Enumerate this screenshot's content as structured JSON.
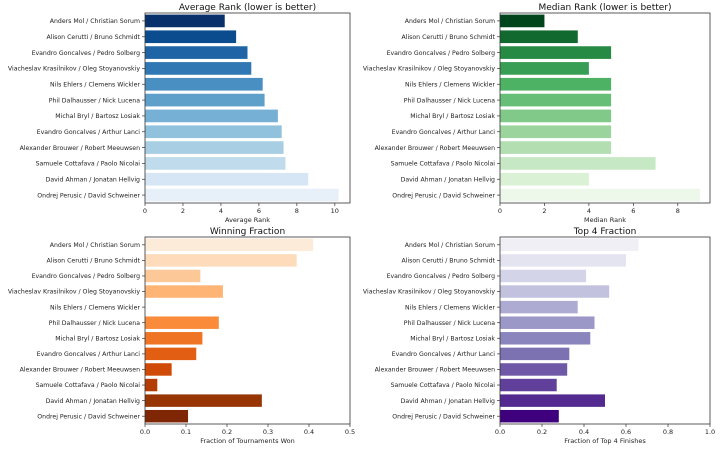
{
  "chart_data": [
    {
      "type": "bar",
      "orientation": "horizontal",
      "title": "Average Rank (lower is better)",
      "xlabel": "Average Rank",
      "ylabel": "",
      "xlim": [
        0,
        10.8
      ],
      "xticks": [
        "0",
        "2",
        "4",
        "6",
        "8",
        "10"
      ],
      "xtick_values": [
        0,
        2,
        4,
        6,
        8,
        10
      ],
      "categories": [
        "Anders Mol / Christian Sorum",
        "Alison Cerutti / Bruno Schmidt",
        "Evandro Goncalves / Pedro Solberg",
        "Viacheslav Krasilnikov / Oleg Stoyanovskiy",
        "Nils Ehlers / Clemens Wickler",
        "Phil Dalhausser / Nick Lucena",
        "Michal Bryl / Bartosz Losiak",
        "Evandro Goncalves / Arthur Lanci",
        "Alexander Brouwer / Robert Meeuwsen",
        "Samuele Cottafava / Paolo Nicolai",
        "David Ahman / Jonatan Hellvig",
        "Ondrej Perusic / David Schweiner"
      ],
      "values": [
        4.2,
        4.8,
        5.4,
        5.6,
        6.2,
        6.3,
        7.0,
        7.2,
        7.3,
        7.4,
        8.6,
        10.2
      ],
      "colors": [
        "#08306b",
        "#0b4c8f",
        "#1f65a5",
        "#2f78b4",
        "#4a8fc2",
        "#5fa0cb",
        "#76b0d4",
        "#90c1dd",
        "#a8cee4",
        "#c0dbec",
        "#d7e6f4",
        "#e7f0f9"
      ],
      "grid": false
    },
    {
      "type": "bar",
      "orientation": "horizontal",
      "title": "Median Rank (lower is better)",
      "xlabel": "Median Rank",
      "ylabel": "",
      "xlim": [
        0,
        9.45
      ],
      "xticks": [
        "0",
        "2",
        "4",
        "6",
        "8"
      ],
      "xtick_values": [
        0,
        2,
        4,
        6,
        8
      ],
      "categories": [
        "Anders Mol / Christian Sorum",
        "Alison Cerutti / Bruno Schmidt",
        "Evandro Goncalves / Pedro Solberg",
        "Viacheslav Krasilnikov / Oleg Stoyanovskiy",
        "Nils Ehlers / Clemens Wickler",
        "Phil Dalhausser / Nick Lucena",
        "Michal Bryl / Bartosz Losiak",
        "Evandro Goncalves / Arthur Lanci",
        "Alexander Brouwer / Robert Meeuwsen",
        "Samuele Cottafava / Paolo Nicolai",
        "David Ahman / Jonatan Hellvig",
        "Ondrej Perusic / David Schweiner"
      ],
      "values": [
        2,
        3.5,
        5,
        4,
        5,
        5,
        5,
        5,
        5,
        7,
        4,
        9
      ],
      "colors": [
        "#00441b",
        "#11692f",
        "#268a44",
        "#389e55",
        "#4eb265",
        "#67be76",
        "#81c989",
        "#9bd49d",
        "#b2deb1",
        "#c7e8c4",
        "#dbf1d6",
        "#edf8ea"
      ],
      "grid": false
    },
    {
      "type": "bar",
      "orientation": "horizontal",
      "title": "Winning Fraction",
      "xlabel": "Fraction of Tournaments Won",
      "ylabel": "",
      "xlim": [
        0,
        0.5
      ],
      "xticks": [
        "0.0",
        "0.1",
        "0.2",
        "0.3",
        "0.4",
        "0.5"
      ],
      "xtick_values": [
        0,
        0.1,
        0.2,
        0.3,
        0.4,
        0.5
      ],
      "categories": [
        "Anders Mol / Christian Sorum",
        "Alison Cerutti / Bruno Schmidt",
        "Evandro Goncalves / Pedro Solberg",
        "Viacheslav Krasilnikov / Oleg Stoyanovskiy",
        "Nils Ehlers / Clemens Wickler",
        "Phil Dalhausser / Nick Lucena",
        "Michal Bryl / Bartosz Losiak",
        "Evandro Goncalves / Arthur Lanci",
        "Alexander Brouwer / Robert Meeuwsen",
        "Samuele Cottafava / Paolo Nicolai",
        "David Ahman / Jonatan Hellvig",
        "Ondrej Perusic / David Schweiner"
      ],
      "values": [
        0.41,
        0.37,
        0.135,
        0.19,
        0.0,
        0.18,
        0.14,
        0.125,
        0.065,
        0.03,
        0.285,
        0.105
      ],
      "colors": [
        "#fdebd9",
        "#fddbbb",
        "#fdc898",
        "#fdb475",
        "#fd9f56",
        "#f98b3a",
        "#ef7524",
        "#e25e13",
        "#cf4a07",
        "#b33d03",
        "#983504",
        "#7f2704"
      ],
      "grid": false
    },
    {
      "type": "bar",
      "orientation": "horizontal",
      "title": "Top 4 Fraction",
      "xlabel": "Fraction of Top 4 Finishes",
      "ylabel": "",
      "xlim": [
        0,
        1.0
      ],
      "xticks": [
        "0.0",
        "0.2",
        "0.4",
        "0.6",
        "0.8",
        "1.0"
      ],
      "xtick_values": [
        0,
        0.2,
        0.4,
        0.6,
        0.8,
        1.0
      ],
      "categories": [
        "Anders Mol / Christian Sorum",
        "Alison Cerutti / Bruno Schmidt",
        "Evandro Goncalves / Pedro Solberg",
        "Viacheslav Krasilnikov / Oleg Stoyanovskiy",
        "Nils Ehlers / Clemens Wickler",
        "Phil Dalhausser / Nick Lucena",
        "Michal Bryl / Bartosz Losiak",
        "Evandro Goncalves / Arthur Lanci",
        "Alexander Brouwer / Robert Meeuwsen",
        "Samuele Cottafava / Paolo Nicolai",
        "David Ahman / Jonatan Hellvig",
        "Ondrej Perusic / David Schweiner"
      ],
      "values": [
        0.66,
        0.6,
        0.41,
        0.52,
        0.37,
        0.45,
        0.43,
        0.33,
        0.32,
        0.27,
        0.5,
        0.28
      ],
      "colors": [
        "#f1eff6",
        "#e4e3f0",
        "#d4d4e8",
        "#c2c2df",
        "#adabd2",
        "#9b97c6",
        "#8a85bc",
        "#7c72b2",
        "#6f58a6",
        "#61409b",
        "#532a8f",
        "#3f007d"
      ],
      "grid": false
    }
  ]
}
